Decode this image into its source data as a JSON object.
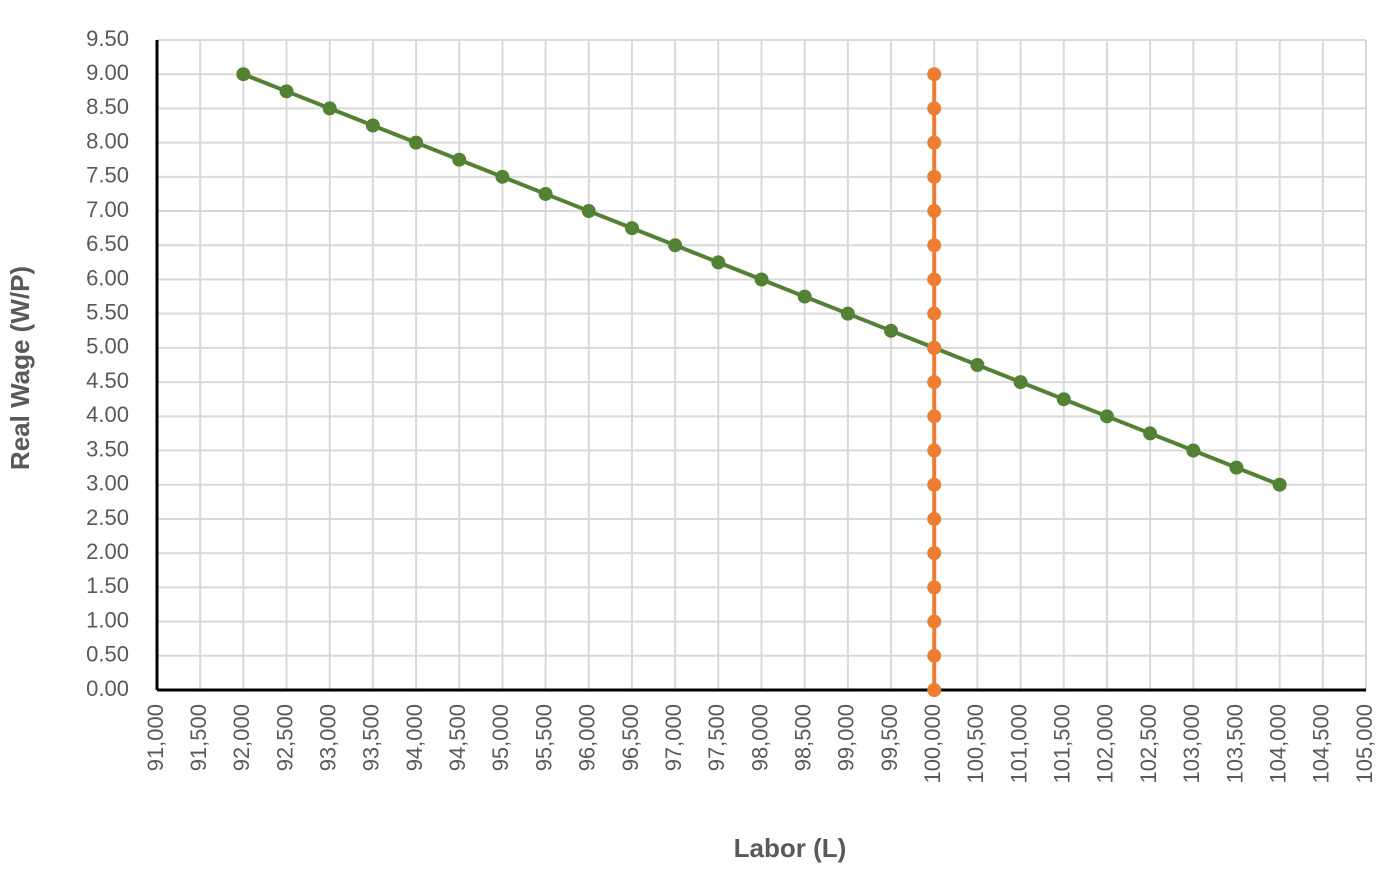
{
  "chart_data": {
    "type": "line",
    "xlabel": "Labor (L)",
    "ylabel": "Real Wage (W/P)",
    "series": [
      {
        "color": "#548235",
        "x": [
          92000,
          92500,
          93000,
          93500,
          94000,
          94500,
          95000,
          95500,
          96000,
          96500,
          97000,
          97500,
          98000,
          98500,
          99000,
          99500,
          100000,
          100500,
          101000,
          101500,
          102000,
          102500,
          103000,
          103500,
          104000
        ],
        "values": [
          9,
          8.75,
          8.5,
          8.25,
          8,
          7.75,
          7.5,
          7.25,
          7,
          6.75,
          6.5,
          6.25,
          6,
          5.75,
          5.5,
          5.25,
          5,
          4.75,
          4.5,
          4.25,
          4,
          3.75,
          3.5,
          3.25,
          3
        ]
      },
      {
        "color": "#ed7d31",
        "x": [
          100000,
          100000,
          100000,
          100000,
          100000,
          100000,
          100000,
          100000,
          100000,
          100000,
          100000,
          100000,
          100000,
          100000,
          100000,
          100000,
          100000,
          100000,
          100000
        ],
        "values": [
          0,
          0.5,
          1,
          1.5,
          2,
          2.5,
          3,
          3.5,
          4,
          4.5,
          5,
          5.5,
          6,
          6.5,
          7,
          7.5,
          8,
          8.5,
          9
        ]
      }
    ],
    "xlim": [
      91000,
      105000
    ],
    "xticks": [
      {
        "value": 91000,
        "label": "91,000"
      },
      {
        "value": 91500,
        "label": "91,500"
      },
      {
        "value": 92000,
        "label": "92,000"
      },
      {
        "value": 92500,
        "label": "92,500"
      },
      {
        "value": 93000,
        "label": "93,000"
      },
      {
        "value": 93500,
        "label": "93,500"
      },
      {
        "value": 94000,
        "label": "94,000"
      },
      {
        "value": 94500,
        "label": "94,500"
      },
      {
        "value": 95000,
        "label": "95,000"
      },
      {
        "value": 95500,
        "label": "95,500"
      },
      {
        "value": 96000,
        "label": "96,000"
      },
      {
        "value": 96500,
        "label": "96,500"
      },
      {
        "value": 97000,
        "label": "97,000"
      },
      {
        "value": 97500,
        "label": "97,500"
      },
      {
        "value": 98000,
        "label": "98,000"
      },
      {
        "value": 98500,
        "label": "98,500"
      },
      {
        "value": 99000,
        "label": "99,000"
      },
      {
        "value": 99500,
        "label": "99,500"
      },
      {
        "value": 100000,
        "label": "100,000"
      },
      {
        "value": 100500,
        "label": "100,500"
      },
      {
        "value": 101000,
        "label": "101,000"
      },
      {
        "value": 101500,
        "label": "101,500"
      },
      {
        "value": 102000,
        "label": "102,000"
      },
      {
        "value": 102500,
        "label": "102,500"
      },
      {
        "value": 103000,
        "label": "103,000"
      },
      {
        "value": 103500,
        "label": "103,500"
      },
      {
        "value": 104000,
        "label": "104,000"
      },
      {
        "value": 104500,
        "label": "104,500"
      },
      {
        "value": 105000,
        "label": "105,000"
      }
    ],
    "ylim": [
      0,
      9.5
    ],
    "yticks": [
      {
        "value": 0,
        "label": "0.00"
      },
      {
        "value": 0.5,
        "label": "0.50"
      },
      {
        "value": 1,
        "label": "1.00"
      },
      {
        "value": 1.5,
        "label": "1.50"
      },
      {
        "value": 2,
        "label": "2.00"
      },
      {
        "value": 2.5,
        "label": "2.50"
      },
      {
        "value": 3,
        "label": "3.00"
      },
      {
        "value": 3.5,
        "label": "3.50"
      },
      {
        "value": 4,
        "label": "4.00"
      },
      {
        "value": 4.5,
        "label": "4.50"
      },
      {
        "value": 5,
        "label": "5.00"
      },
      {
        "value": 5.5,
        "label": "5.50"
      },
      {
        "value": 6,
        "label": "6.00"
      },
      {
        "value": 6.5,
        "label": "6.50"
      },
      {
        "value": 7,
        "label": "7.00"
      },
      {
        "value": 7.5,
        "label": "7.50"
      },
      {
        "value": 8,
        "label": "8.00"
      },
      {
        "value": 8.5,
        "label": "8.50"
      },
      {
        "value": 9,
        "label": "9.00"
      },
      {
        "value": 9.5,
        "label": "9.50"
      }
    ],
    "grid": true
  }
}
